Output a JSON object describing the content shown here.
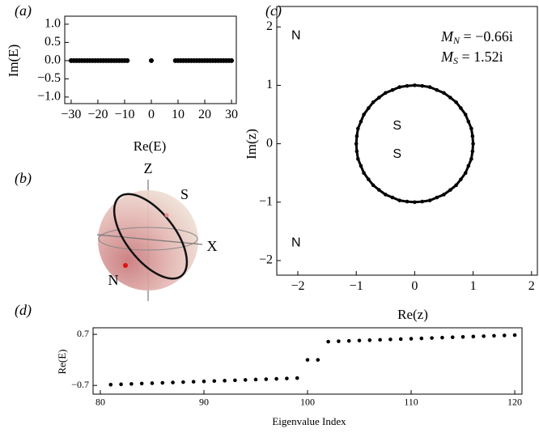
{
  "chart_data": [
    {
      "type": "scatter",
      "label": "(a)",
      "xlabel": "Re(E)",
      "ylabel": "Im(E)",
      "color": "#000000",
      "connect": false,
      "xlim": [
        -32.4,
        31.8
      ],
      "ylim": [
        -1.18,
        1.22
      ],
      "xticks": [
        {
          "value": -30,
          "label": "−30"
        },
        {
          "value": -20,
          "label": "−20"
        },
        {
          "value": -10,
          "label": "−10"
        },
        0,
        10,
        20,
        30
      ],
      "yticks": [
        {
          "value": 1,
          "label": "1.0"
        },
        0.5,
        {
          "value": 0,
          "label": "0.0"
        },
        {
          "value": -0.5,
          "label": "−0.5"
        },
        {
          "value": -1,
          "label": "−1.0"
        }
      ],
      "x": [
        -30,
        -29,
        -28,
        -27,
        -26,
        -25,
        -24,
        -23,
        -22,
        -21,
        -20,
        -19,
        -18,
        -17,
        -16,
        -15,
        -14,
        -13,
        -12,
        -11,
        -10,
        -9,
        0,
        9,
        10,
        11,
        12,
        13,
        14,
        15,
        16,
        17,
        18,
        19,
        20,
        21,
        22,
        23,
        24,
        25,
        26,
        27,
        28,
        29,
        30
      ],
      "y": [
        0,
        0,
        0,
        0,
        0,
        0,
        0,
        0,
        0,
        0,
        0,
        0,
        0,
        0,
        0,
        0,
        0,
        0,
        0,
        0,
        0,
        0,
        0,
        0,
        0,
        0,
        0,
        0,
        0,
        0,
        0,
        0,
        0,
        0,
        0,
        0,
        0,
        0,
        0,
        0,
        0,
        0,
        0,
        0,
        0
      ]
    },
    {
      "type": "scatter",
      "label": "(c)",
      "xlabel": "Re(z)",
      "ylabel": "Im(z)",
      "color": "#000000",
      "connect": true,
      "xlim": [
        -2.36,
        2.1
      ],
      "ylim": [
        -2.25,
        2.35
      ],
      "xticks": [
        {
          "value": -2,
          "label": "−2"
        },
        {
          "value": -1,
          "label": "−1"
        },
        0,
        1,
        2
      ],
      "yticks": [
        {
          "value": -2,
          "label": "−2"
        },
        {
          "value": -1,
          "label": "−1"
        },
        0,
        1,
        2
      ],
      "x": [
        1,
        0.99,
        0.97,
        0.92,
        0.87,
        0.79,
        0.71,
        0.61,
        0.5,
        0.38,
        0.26,
        0.13,
        0,
        -0.13,
        -0.26,
        -0.38,
        -0.5,
        -0.61,
        -0.71,
        -0.79,
        -0.87,
        -0.92,
        -0.97,
        -0.99,
        -1,
        -0.99,
        -0.97,
        -0.92,
        -0.87,
        -0.79,
        -0.71,
        -0.61,
        -0.5,
        -0.38,
        -0.26,
        -0.13,
        0,
        0.13,
        0.26,
        0.38,
        0.5,
        0.61,
        0.71,
        0.79,
        0.87,
        0.92,
        0.97,
        0.99
      ],
      "y": [
        0,
        0.13,
        0.26,
        0.38,
        0.5,
        0.61,
        0.71,
        0.79,
        0.87,
        0.92,
        0.97,
        0.99,
        1,
        0.99,
        0.97,
        0.92,
        0.87,
        0.79,
        0.71,
        0.61,
        0.5,
        0.38,
        0.26,
        0.13,
        0,
        -0.13,
        -0.26,
        -0.38,
        -0.5,
        -0.61,
        -0.71,
        -0.79,
        -0.87,
        -0.92,
        -0.97,
        -0.99,
        -1,
        -0.99,
        -0.97,
        -0.92,
        -0.87,
        -0.79,
        -0.71,
        -0.61,
        -0.5,
        -0.38,
        -0.26,
        -0.13
      ],
      "markers": {
        "x": [
          -2.03,
          -2.03,
          -0.3,
          -0.3
        ],
        "y": [
          1.85,
          -1.7,
          0.3,
          -0.18
        ],
        "labels": [
          "N",
          "N",
          "S",
          "S"
        ]
      },
      "annotations": [
        {
          "symbol": "M",
          "subscript": "N",
          "text": " = −0.66i"
        },
        {
          "symbol": "M",
          "subscript": "S",
          "text": " = 1.52i"
        }
      ]
    },
    {
      "type": "scatter",
      "label": "(d)",
      "xlabel": "Eigenvalue Index",
      "ylabel": "Re(E)",
      "color": "#000000",
      "connect": false,
      "xlim": [
        79.3,
        120.7
      ],
      "ylim": [
        -0.94,
        0.88
      ],
      "xticks": [
        80,
        90,
        100,
        110,
        120
      ],
      "yticks": [
        0.7,
        {
          "value": -0.7,
          "label": "−0.7"
        }
      ],
      "x": [
        81,
        82,
        83,
        84,
        85,
        86,
        87,
        88,
        89,
        90,
        91,
        92,
        93,
        94,
        95,
        96,
        97,
        98,
        99,
        100,
        101,
        102,
        103,
        104,
        105,
        106,
        107,
        108,
        109,
        110,
        111,
        112,
        113,
        114,
        115,
        116,
        117,
        118,
        119,
        120
      ],
      "y": [
        -0.68,
        -0.67,
        -0.66,
        -0.65,
        -0.64,
        -0.63,
        -0.62,
        -0.61,
        -0.6,
        -0.59,
        -0.58,
        -0.57,
        -0.56,
        -0.55,
        -0.54,
        -0.53,
        -0.52,
        -0.51,
        -0.5,
        0,
        0,
        0.5,
        0.51,
        0.52,
        0.53,
        0.54,
        0.55,
        0.56,
        0.57,
        0.58,
        0.59,
        0.6,
        0.61,
        0.62,
        0.63,
        0.64,
        0.65,
        0.66,
        0.67,
        0.68
      ]
    }
  ],
  "sphere": {
    "label": "(b)",
    "axes": [
      "Z",
      "X"
    ],
    "points": [
      "S",
      "N"
    ]
  }
}
